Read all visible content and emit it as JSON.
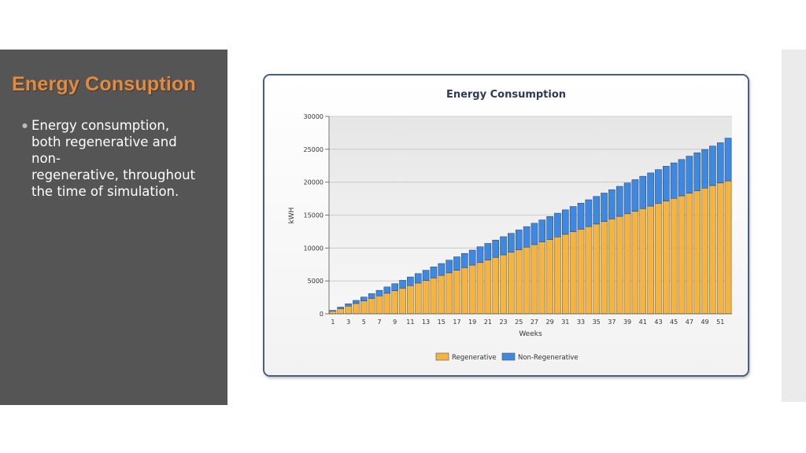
{
  "slide": {
    "title": "Energy Consuption",
    "bullet_lines": [
      "Energy consumption,",
      "both regenerative and",
      "non-",
      "regenerative, throughout",
      "the time of simulation."
    ]
  },
  "chart_data": {
    "type": "bar",
    "stacked": true,
    "title": "Energy Consumption",
    "xlabel": "Weeks",
    "ylabel": "kWH",
    "ylim": [
      0,
      30000
    ],
    "yticks": [
      0,
      5000,
      10000,
      15000,
      20000,
      25000,
      30000
    ],
    "x_tick_labels": [
      "1",
      "3",
      "5",
      "7",
      "9",
      "11",
      "13",
      "15",
      "17",
      "19",
      "21",
      "23",
      "25",
      "27",
      "29",
      "31",
      "33",
      "35",
      "37",
      "39",
      "41",
      "43",
      "45",
      "47",
      "49",
      "51"
    ],
    "categories": [
      "1",
      "2",
      "3",
      "4",
      "5",
      "6",
      "7",
      "8",
      "9",
      "10",
      "11",
      "12",
      "13",
      "14",
      "15",
      "16",
      "17",
      "18",
      "19",
      "20",
      "21",
      "22",
      "23",
      "24",
      "25",
      "26",
      "27",
      "28",
      "29",
      "30",
      "31",
      "32",
      "33",
      "34",
      "35",
      "36",
      "37",
      "38",
      "39",
      "40",
      "41",
      "42",
      "43",
      "44",
      "45",
      "46",
      "47",
      "48",
      "49",
      "50",
      "51",
      "52"
    ],
    "series": [
      {
        "name": "Regenerative",
        "color": "#f5b342",
        "values": [
          400,
          780,
          1170,
          1560,
          1950,
          2340,
          2730,
          3120,
          3500,
          3890,
          4280,
          4670,
          5060,
          5450,
          5840,
          6230,
          6620,
          7010,
          7400,
          7790,
          8180,
          8570,
          8960,
          9350,
          9740,
          10130,
          10520,
          10910,
          11300,
          11690,
          12080,
          12470,
          12860,
          13250,
          13640,
          14030,
          14420,
          14810,
          15200,
          15590,
          15980,
          16370,
          16760,
          17150,
          17540,
          17930,
          18320,
          18710,
          19100,
          19490,
          19880,
          20200
        ]
      },
      {
        "name": "Non-Regenerative",
        "color": "#3f88e2",
        "values": [
          115,
          240,
          360,
          480,
          600,
          720,
          840,
          960,
          1080,
          1200,
          1320,
          1440,
          1560,
          1680,
          1800,
          1920,
          2040,
          2160,
          2280,
          2400,
          2520,
          2640,
          2760,
          2880,
          3000,
          3120,
          3240,
          3360,
          3480,
          3600,
          3720,
          3840,
          3960,
          4080,
          4200,
          4320,
          4440,
          4560,
          4680,
          4800,
          4920,
          5040,
          5160,
          5280,
          5400,
          5520,
          5640,
          5760,
          5880,
          6000,
          6120,
          6500
        ]
      }
    ],
    "legend": "bottom-center",
    "grid": true
  }
}
